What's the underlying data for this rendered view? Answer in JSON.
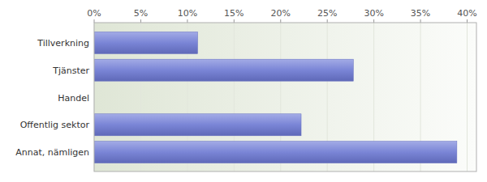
{
  "chart_data": {
    "type": "bar",
    "orientation": "horizontal",
    "categories": [
      "Tillverkning",
      "Tjänster",
      "Handel",
      "Offentlig sektor",
      "Annat, nämligen"
    ],
    "values": [
      11.1,
      27.8,
      0,
      22.2,
      38.9
    ],
    "color": "#7a85d6",
    "xlim": [
      0,
      41
    ],
    "xticks": [
      {
        "value": 0,
        "label": "0%"
      },
      {
        "value": 5,
        "label": "5%"
      },
      {
        "value": 10,
        "label": "10%"
      },
      {
        "value": 15,
        "label": "15%"
      },
      {
        "value": 20,
        "label": "20%"
      },
      {
        "value": 25,
        "label": "25%"
      },
      {
        "value": 30,
        "label": "30%"
      },
      {
        "value": 35,
        "label": "35%"
      },
      {
        "value": 40,
        "label": "40%"
      }
    ],
    "grid": true
  }
}
